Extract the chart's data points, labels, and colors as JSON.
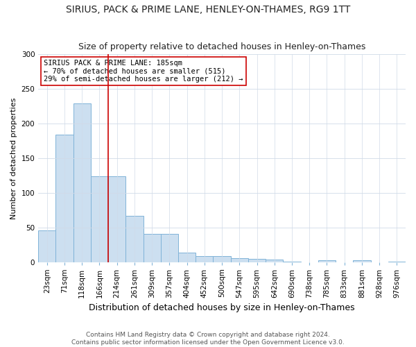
{
  "title": "SIRIUS, PACK & PRIME LANE, HENLEY-ON-THAMES, RG9 1TT",
  "subtitle": "Size of property relative to detached houses in Henley-on-Thames",
  "xlabel": "Distribution of detached houses by size in Henley-on-Thames",
  "ylabel": "Number of detached properties",
  "footnote1": "Contains HM Land Registry data © Crown copyright and database right 2024.",
  "footnote2": "Contains public sector information licensed under the Open Government Licence v3.0.",
  "bin_labels": [
    "23sqm",
    "71sqm",
    "118sqm",
    "166sqm",
    "214sqm",
    "261sqm",
    "309sqm",
    "357sqm",
    "404sqm",
    "452sqm",
    "500sqm",
    "547sqm",
    "595sqm",
    "642sqm",
    "690sqm",
    "738sqm",
    "785sqm",
    "833sqm",
    "881sqm",
    "928sqm",
    "976sqm"
  ],
  "bar_values": [
    46,
    184,
    229,
    124,
    124,
    67,
    41,
    41,
    14,
    9,
    9,
    6,
    5,
    4,
    1,
    0,
    3,
    0,
    3,
    0,
    1
  ],
  "bar_color": "#ccdff0",
  "bar_edge_color": "#7fb3d8",
  "vline_x": 3.5,
  "vline_color": "#cc0000",
  "annotation_text": "SIRIUS PACK & PRIME LANE: 185sqm\n← 70% of detached houses are smaller (515)\n29% of semi-detached houses are larger (212) →",
  "annotation_box_color": "white",
  "annotation_box_edge": "#cc0000",
  "ylim": [
    0,
    300
  ],
  "yticks": [
    0,
    50,
    100,
    150,
    200,
    250,
    300
  ],
  "bg_color": "#ffffff",
  "plot_bg": "#ffffff",
  "title_fontsize": 10,
  "subtitle_fontsize": 9,
  "ylabel_fontsize": 8,
  "xlabel_fontsize": 9,
  "tick_fontsize": 7.5,
  "annot_fontsize": 7.5,
  "footnote_fontsize": 6.5
}
